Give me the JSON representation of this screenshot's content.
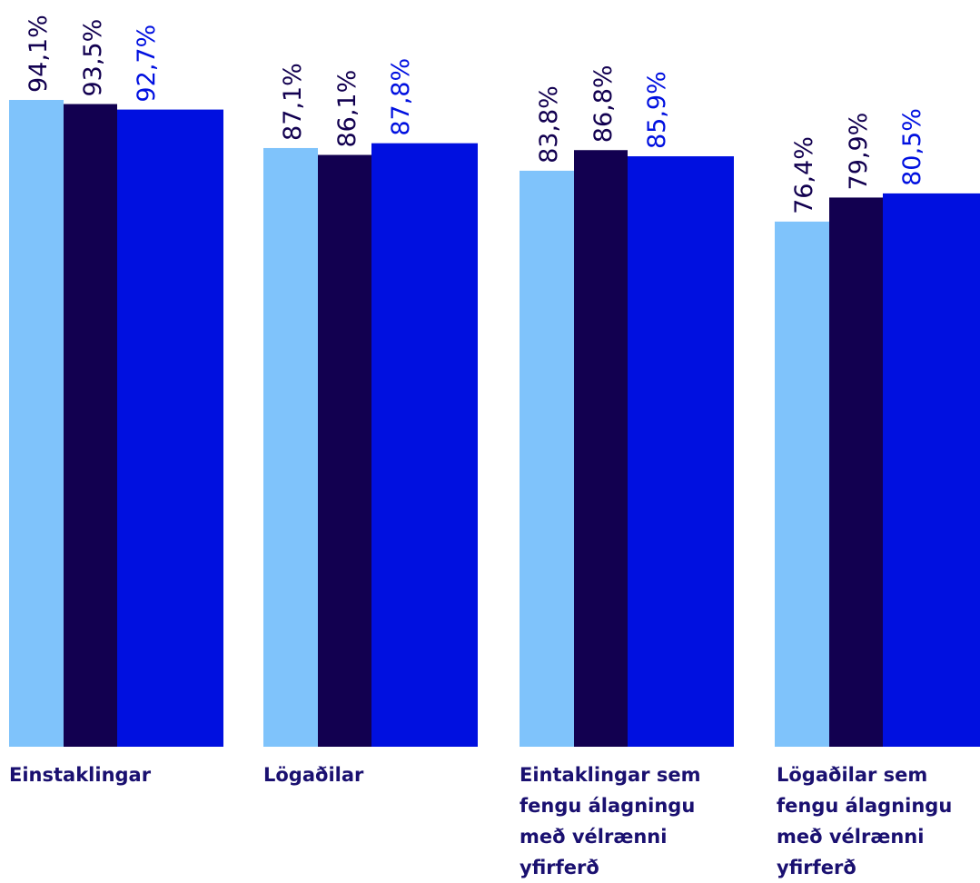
{
  "chart_data": {
    "type": "bar",
    "categories": [
      "Einstaklingar",
      "Lögaðilar",
      "Eintaklingar sem fengu álagningu með vélrænni yfirferð",
      "Lögaðilar sem fengu álagningu með vélrænni yfirferð"
    ],
    "series": [
      {
        "values": [
          94.1,
          87.1,
          83.8,
          76.4
        ],
        "labels": [
          "94,1%",
          "87,1%",
          "83,8%",
          "76,4%"
        ],
        "color": "#7fc3fb"
      },
      {
        "values": [
          93.5,
          86.1,
          86.8,
          79.9
        ],
        "labels": [
          "93,5%",
          "86,1%",
          "86,8%",
          "79,9%"
        ],
        "color": "#120050"
      },
      {
        "values": [
          92.7,
          87.8,
          85.9,
          80.5
        ],
        "labels": [
          "92,7%",
          "87,8%",
          "85,9%",
          "80,5%"
        ],
        "color": "#0010e0"
      }
    ],
    "label_colors": [
      "#120050",
      "#120050",
      "#0010e0"
    ],
    "category_label_color": "#1a1070",
    "grid": false,
    "legend": "none"
  }
}
